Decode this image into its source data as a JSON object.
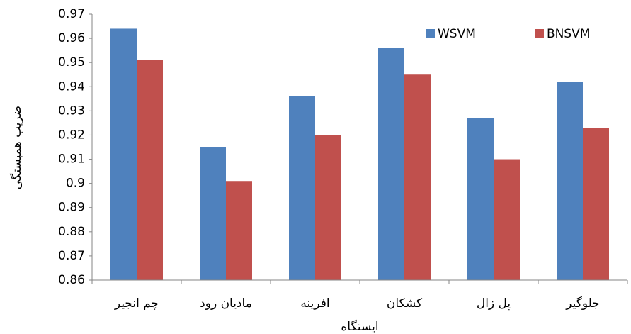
{
  "chart_data": {
    "type": "bar",
    "x_label": "ایستگاه",
    "y_label": "ضریب همبستگی",
    "categories": [
      "چم انجیر",
      "مادیان رود",
      "افرینه",
      "کشکان",
      "پل زال",
      "جلوگیر"
    ],
    "series": [
      {
        "name": "WSVM",
        "color": "#4f81bd",
        "values": [
          0.964,
          0.915,
          0.936,
          0.956,
          0.927,
          0.942
        ]
      },
      {
        "name": "BNSVM",
        "color": "#c0504d",
        "values": [
          0.951,
          0.901,
          0.92,
          0.945,
          0.91,
          0.923
        ]
      }
    ],
    "ylim": [
      0.86,
      0.97
    ],
    "yticks": [
      0.86,
      0.87,
      0.88,
      0.89,
      0.9,
      0.91,
      0.92,
      0.93,
      0.94,
      0.95,
      0.96,
      0.97
    ],
    "legend": "top-right",
    "grid": false
  }
}
